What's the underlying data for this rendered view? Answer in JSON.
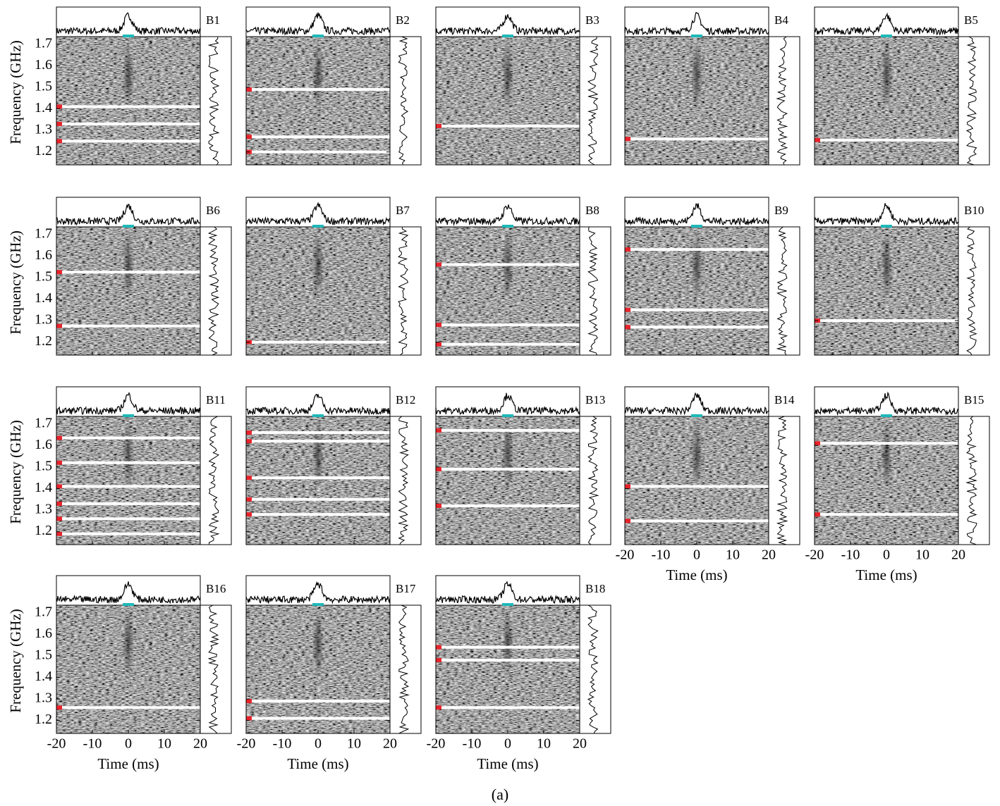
{
  "chart_data": [
    {
      "type": "dynamic-spectrum",
      "title": "B1",
      "ylabel": "Frequency (GHz)",
      "xlim": [
        -20,
        20
      ],
      "ylim": [
        1.14,
        1.735
      ],
      "xticks": [
        -20,
        -10,
        0,
        10,
        20
      ],
      "yticks": [
        1.2,
        1.3,
        1.4,
        1.5,
        1.6,
        1.7
      ],
      "masked": [
        1.41,
        1.33,
        1.25
      ]
    },
    {
      "type": "dynamic-spectrum",
      "title": "B2",
      "xlim": [
        -20,
        20
      ],
      "ylim": [
        1.14,
        1.735
      ],
      "xticks": [
        -20,
        -10,
        0,
        10,
        20
      ],
      "yticks": [
        1.2,
        1.3,
        1.4,
        1.5,
        1.6,
        1.7
      ],
      "masked": [
        1.49,
        1.27,
        1.2
      ]
    },
    {
      "type": "dynamic-spectrum",
      "title": "B3",
      "xlim": [
        -20,
        20
      ],
      "ylim": [
        1.14,
        1.735
      ],
      "xticks": [
        -20,
        -10,
        0,
        10,
        20
      ],
      "yticks": [
        1.2,
        1.3,
        1.4,
        1.5,
        1.6,
        1.7
      ],
      "masked": [
        1.32
      ]
    },
    {
      "type": "dynamic-spectrum",
      "title": "B4",
      "xlim": [
        -20,
        20
      ],
      "ylim": [
        1.14,
        1.735
      ],
      "xticks": [
        -20,
        -10,
        0,
        10,
        20
      ],
      "yticks": [
        1.2,
        1.3,
        1.4,
        1.5,
        1.6,
        1.7
      ],
      "masked": [
        1.26
      ]
    },
    {
      "type": "dynamic-spectrum",
      "title": "B5",
      "xlim": [
        -20,
        20
      ],
      "ylim": [
        1.14,
        1.735
      ],
      "xticks": [
        -20,
        -10,
        0,
        10,
        20
      ],
      "yticks": [
        1.2,
        1.3,
        1.4,
        1.5,
        1.6,
        1.7
      ],
      "masked": [
        1.255
      ]
    },
    {
      "type": "dynamic-spectrum",
      "title": "B6",
      "ylabel": "Frequency (GHz)",
      "xlim": [
        -20,
        20
      ],
      "ylim": [
        1.14,
        1.735
      ],
      "xticks": [
        -20,
        -10,
        0,
        10,
        20
      ],
      "yticks": [
        1.2,
        1.3,
        1.4,
        1.5,
        1.6,
        1.7
      ],
      "masked": [
        1.525,
        1.275
      ]
    },
    {
      "type": "dynamic-spectrum",
      "title": "B7",
      "xlim": [
        -20,
        20
      ],
      "ylim": [
        1.14,
        1.735
      ],
      "xticks": [
        -20,
        -10,
        0,
        10,
        20
      ],
      "yticks": [
        1.2,
        1.3,
        1.4,
        1.5,
        1.6,
        1.7
      ],
      "masked": [
        1.2
      ]
    },
    {
      "type": "dynamic-spectrum",
      "title": "B8",
      "xlim": [
        -20,
        20
      ],
      "ylim": [
        1.14,
        1.735
      ],
      "xticks": [
        -20,
        -10,
        0,
        10,
        20
      ],
      "yticks": [
        1.2,
        1.3,
        1.4,
        1.5,
        1.6,
        1.7
      ],
      "masked": [
        1.56,
        1.28,
        1.19
      ]
    },
    {
      "type": "dynamic-spectrum",
      "title": "B9",
      "xlim": [
        -20,
        20
      ],
      "ylim": [
        1.14,
        1.735
      ],
      "xticks": [
        -20,
        -10,
        0,
        10,
        20
      ],
      "yticks": [
        1.2,
        1.3,
        1.4,
        1.5,
        1.6,
        1.7
      ],
      "masked": [
        1.63,
        1.35,
        1.27
      ]
    },
    {
      "type": "dynamic-spectrum",
      "title": "B10",
      "xlim": [
        -20,
        20
      ],
      "ylim": [
        1.14,
        1.735
      ],
      "xticks": [
        -20,
        -10,
        0,
        10,
        20
      ],
      "yticks": [
        1.2,
        1.3,
        1.4,
        1.5,
        1.6,
        1.7
      ],
      "masked": [
        1.3
      ]
    },
    {
      "type": "dynamic-spectrum",
      "title": "B11",
      "ylabel": "Frequency (GHz)",
      "xlim": [
        -20,
        20
      ],
      "ylim": [
        1.14,
        1.735
      ],
      "xticks": [
        -20,
        -10,
        0,
        10,
        20
      ],
      "yticks": [
        1.2,
        1.3,
        1.4,
        1.5,
        1.6,
        1.7
      ],
      "masked": [
        1.635,
        1.52,
        1.41,
        1.33,
        1.26,
        1.19
      ]
    },
    {
      "type": "dynamic-spectrum",
      "title": "B12",
      "xlim": [
        -20,
        20
      ],
      "ylim": [
        1.14,
        1.735
      ],
      "xticks": [
        -20,
        -10,
        0,
        10,
        20
      ],
      "yticks": [
        1.2,
        1.3,
        1.4,
        1.5,
        1.6,
        1.7
      ],
      "masked": [
        1.66,
        1.62,
        1.45,
        1.35,
        1.28
      ]
    },
    {
      "type": "dynamic-spectrum",
      "title": "B13",
      "xlim": [
        -20,
        20
      ],
      "ylim": [
        1.14,
        1.735
      ],
      "xticks": [
        -20,
        -10,
        0,
        10,
        20
      ],
      "yticks": [
        1.2,
        1.3,
        1.4,
        1.5,
        1.6,
        1.7
      ],
      "masked": [
        1.67,
        1.49,
        1.32
      ]
    },
    {
      "type": "dynamic-spectrum",
      "title": "B14",
      "xlabel": "Time (ms)",
      "xlim": [
        -20,
        20
      ],
      "ylim": [
        1.14,
        1.735
      ],
      "xticks": [
        -20,
        -10,
        0,
        10,
        20
      ],
      "yticks": [
        1.2,
        1.3,
        1.4,
        1.5,
        1.6,
        1.7
      ],
      "masked": [
        1.41,
        1.25
      ]
    },
    {
      "type": "dynamic-spectrum",
      "title": "B15",
      "xlabel": "Time (ms)",
      "xlim": [
        -20,
        20
      ],
      "ylim": [
        1.14,
        1.735
      ],
      "xticks": [
        -20,
        -10,
        0,
        10,
        20
      ],
      "yticks": [
        1.2,
        1.3,
        1.4,
        1.5,
        1.6,
        1.7
      ],
      "masked": [
        1.61,
        1.28
      ]
    },
    {
      "type": "dynamic-spectrum",
      "title": "B16",
      "ylabel": "Frequency (GHz)",
      "xlabel": "Time (ms)",
      "xlim": [
        -20,
        20
      ],
      "ylim": [
        1.14,
        1.735
      ],
      "xticks": [
        -20,
        -10,
        0,
        10,
        20
      ],
      "yticks": [
        1.2,
        1.3,
        1.4,
        1.5,
        1.6,
        1.7
      ],
      "masked": [
        1.26
      ]
    },
    {
      "type": "dynamic-spectrum",
      "title": "B17",
      "xlabel": "Time (ms)",
      "xlim": [
        -20,
        20
      ],
      "ylim": [
        1.14,
        1.735
      ],
      "xticks": [
        -20,
        -10,
        0,
        10,
        20
      ],
      "yticks": [
        1.2,
        1.3,
        1.4,
        1.5,
        1.6,
        1.7
      ],
      "masked": [
        1.29,
        1.21
      ]
    },
    {
      "type": "dynamic-spectrum",
      "title": "B18",
      "xlabel": "Time (ms)",
      "xlim": [
        -20,
        20
      ],
      "ylim": [
        1.14,
        1.735
      ],
      "xticks": [
        -20,
        -10,
        0,
        10,
        20
      ],
      "yticks": [
        1.2,
        1.3,
        1.4,
        1.5,
        1.6,
        1.7
      ],
      "masked": [
        1.54,
        1.48,
        1.26
      ]
    }
  ],
  "caption": "(a)"
}
